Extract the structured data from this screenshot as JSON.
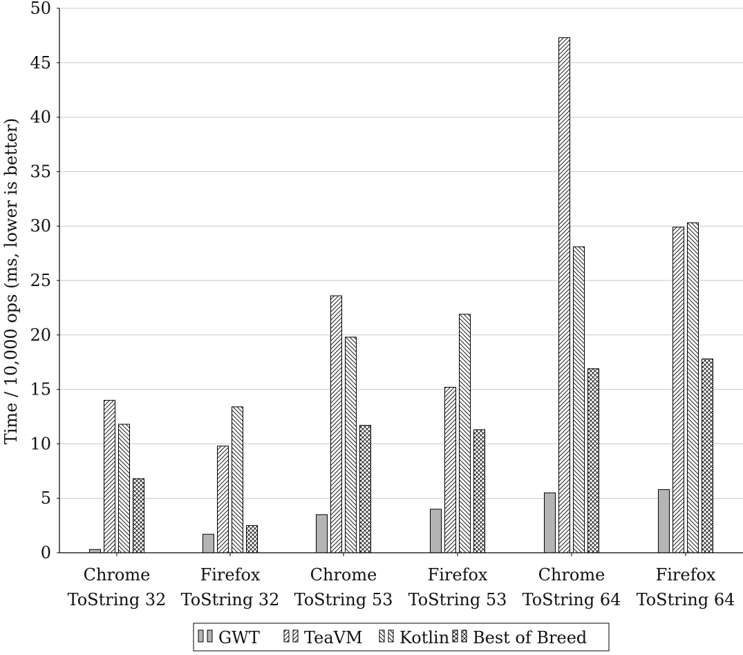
{
  "chart_data": {
    "type": "bar",
    "title": "",
    "xlabel": "",
    "ylabel": "Time / 10,000 ops (ms, lower is better)",
    "ylim": [
      0,
      50
    ],
    "yticks": [
      0,
      5,
      10,
      15,
      20,
      25,
      30,
      35,
      40,
      45,
      50
    ],
    "grid": "horizontal",
    "legend_position": "bottom",
    "categories": [
      [
        "Chrome",
        "ToString 32"
      ],
      [
        "Firefox",
        "ToString 32"
      ],
      [
        "Chrome",
        "ToString 53"
      ],
      [
        "Firefox",
        "ToString 53"
      ],
      [
        "Chrome",
        "ToString 64"
      ],
      [
        "Firefox",
        "ToString 64"
      ]
    ],
    "series": [
      {
        "name": "GWT",
        "pattern": "solid-gray",
        "values": [
          0.3,
          1.7,
          3.5,
          4.0,
          5.5,
          5.8
        ]
      },
      {
        "name": "TeaVM",
        "pattern": "diagonal-up",
        "values": [
          14.0,
          9.8,
          23.6,
          15.2,
          47.3,
          29.9
        ]
      },
      {
        "name": "Kotlin",
        "pattern": "diagonal-down",
        "values": [
          11.8,
          13.4,
          19.8,
          21.9,
          28.1,
          30.3
        ]
      },
      {
        "name": "Best of Breed",
        "pattern": "crosshatch",
        "values": [
          6.8,
          2.5,
          11.7,
          11.3,
          16.9,
          17.8
        ]
      }
    ],
    "colors": {
      "gwt_fill": "#b4b4b4",
      "stroke": "#000000",
      "grid": "#c8c8c8",
      "pattern_fill": "#ffffff"
    }
  }
}
